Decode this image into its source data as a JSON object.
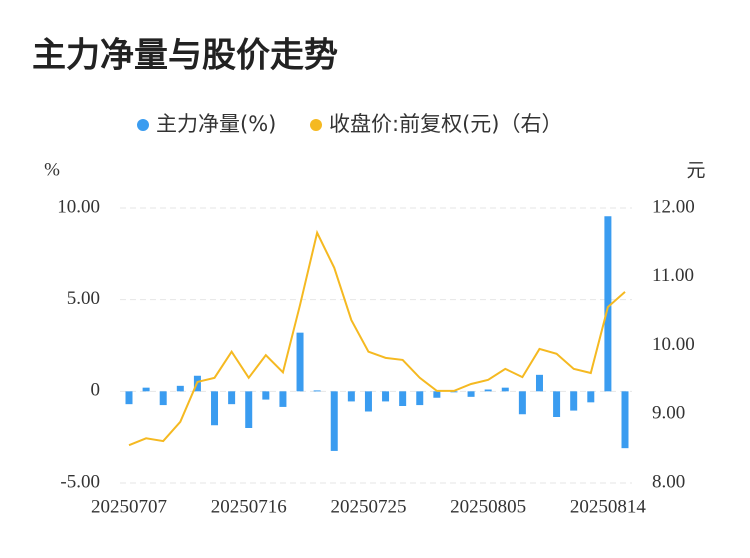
{
  "chart_data": {
    "type": "bar_line",
    "title": "主力净量与股价走势",
    "y_axis_label": "%",
    "y2_axis_label": "元",
    "categories": [
      "20250707",
      null,
      null,
      null,
      null,
      null,
      null,
      "20250716",
      null,
      null,
      null,
      null,
      null,
      null,
      "20250725",
      null,
      null,
      null,
      null,
      null,
      null,
      "20250805",
      null,
      null,
      null,
      null,
      null,
      null,
      "20250814",
      null
    ],
    "series": [
      {
        "name": "主力净量(%)",
        "type": "bar",
        "color": "#3a9cf0",
        "axis": "y",
        "values": [
          -0.7,
          0.2,
          -0.75,
          0.3,
          0.85,
          -1.85,
          -0.7,
          -2.0,
          -0.45,
          -0.85,
          3.2,
          0.05,
          -3.25,
          -0.55,
          -1.1,
          -0.55,
          -0.8,
          -0.75,
          -0.35,
          -0.05,
          -0.3,
          0.1,
          0.2,
          -1.25,
          0.9,
          -1.4,
          -1.05,
          -0.6,
          9.55,
          -3.1
        ]
      },
      {
        "name": "收盘价:前复权(元)（右）",
        "type": "line",
        "color": "#f5b921",
        "axis": "y2",
        "values": [
          8.55,
          8.65,
          8.61,
          8.89,
          9.47,
          9.53,
          9.91,
          9.53,
          9.86,
          9.61,
          10.59,
          11.64,
          11.13,
          10.37,
          9.91,
          9.82,
          9.79,
          9.53,
          9.34,
          9.34,
          9.44,
          9.5,
          9.66,
          9.54,
          9.95,
          9.88,
          9.66,
          9.6,
          10.56,
          10.78
        ]
      }
    ],
    "ylim": [
      -5,
      10
    ],
    "yticks": [
      {
        "value": -5,
        "label": "-5.00"
      },
      0,
      {
        "value": 5,
        "label": "5.00"
      },
      {
        "value": 10,
        "label": "10.00"
      }
    ],
    "y2lim": [
      8,
      12
    ],
    "y2ticks": [
      {
        "value": 8,
        "label": "8.00"
      },
      {
        "value": 9,
        "label": "9.00"
      },
      {
        "value": 10,
        "label": "10.00"
      },
      {
        "value": 11,
        "label": "11.00"
      },
      {
        "value": 12,
        "label": "12.00"
      }
    ],
    "grid": true
  }
}
